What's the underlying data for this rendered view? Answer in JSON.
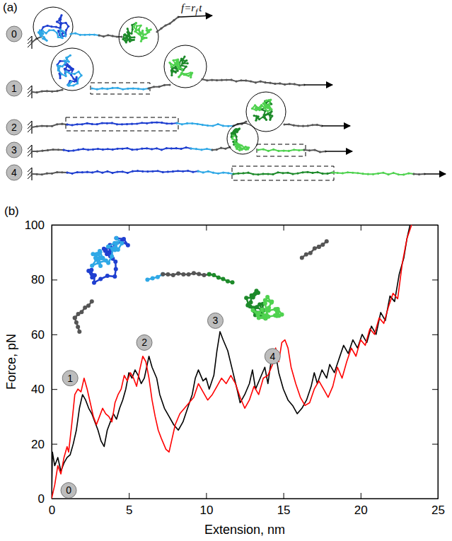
{
  "diagram": {
    "panel_label": "(a)",
    "states": [
      "0",
      "1",
      "2",
      "3",
      "4"
    ],
    "force_label": {
      "text": "f=r",
      "subscript": "f",
      "suffix": "t"
    }
  },
  "chart_data": {
    "type": "line",
    "panel_label": "(b)",
    "x_label": "Extension, nm",
    "y_label": "Force, pN",
    "xlim": [
      0,
      25
    ],
    "ylim": [
      0,
      100
    ],
    "xticks": [
      0,
      5,
      10,
      15,
      20,
      25
    ],
    "yticks": [
      0,
      20,
      40,
      60,
      80,
      100
    ],
    "series": [
      {
        "color": "#000000",
        "x": [
          0,
          0.05,
          0.2,
          0.4,
          0.6,
          0.8,
          1.0,
          1.2,
          1.4,
          1.6,
          1.8,
          2.0,
          2.2,
          2.4,
          2.6,
          2.8,
          3.0,
          3.2,
          3.4,
          3.6,
          3.8,
          4.0,
          4.2,
          4.4,
          4.6,
          4.8,
          5.0,
          5.2,
          5.4,
          5.6,
          5.8,
          6.0,
          6.3,
          6.5,
          6.8,
          7.0,
          7.3,
          7.6,
          7.9,
          8.2,
          8.5,
          8.8,
          9.1,
          9.3,
          9.5,
          9.8,
          10.0,
          10.2,
          10.5,
          10.7,
          10.9,
          11.1,
          11.4,
          11.7,
          12.0,
          12.2,
          12.5,
          12.8,
          13.0,
          13.2,
          13.5,
          13.8,
          14.0,
          14.2,
          14.5,
          14.7,
          15.0,
          15.3,
          15.6,
          15.9,
          16.2,
          16.5,
          16.8,
          17.0,
          17.2,
          17.5,
          17.8,
          18.0,
          18.3,
          18.6,
          18.9,
          19.2,
          19.5,
          19.8,
          20.1,
          20.4,
          20.7,
          21.0,
          21.3,
          21.6,
          21.9,
          22.2,
          22.5,
          22.8,
          23.0,
          23.2
        ],
        "values": [
          0,
          17,
          12,
          15,
          10,
          13,
          15,
          16,
          20,
          25,
          33,
          38,
          36,
          33,
          31,
          28,
          25,
          21,
          19,
          25,
          28,
          31,
          29,
          33,
          36,
          40,
          46,
          44,
          47,
          45,
          42,
          44,
          52,
          48,
          44,
          38,
          33,
          30,
          27,
          25,
          28,
          33,
          38,
          44,
          47,
          43,
          44,
          40,
          45,
          54,
          61,
          58,
          54,
          47,
          40,
          35,
          38,
          42,
          47,
          40,
          44,
          48,
          42,
          50,
          53,
          46,
          40,
          36,
          34,
          31,
          33,
          36,
          41,
          46,
          42,
          47,
          44,
          49,
          46,
          51,
          56,
          53,
          58,
          55,
          60,
          57,
          63,
          60,
          68,
          65,
          74,
          72,
          82,
          88,
          95,
          100
        ]
      },
      {
        "color": "#ff0000",
        "x": [
          0,
          0.2,
          0.4,
          0.6,
          0.8,
          1.0,
          1.1,
          1.3,
          1.5,
          1.7,
          1.9,
          2.1,
          2.3,
          2.5,
          2.7,
          2.9,
          3.1,
          3.3,
          3.5,
          3.7,
          3.9,
          4.1,
          4.3,
          4.5,
          4.7,
          4.9,
          5.1,
          5.3,
          5.5,
          5.7,
          5.9,
          6.1,
          6.3,
          6.5,
          6.7,
          6.9,
          7.1,
          7.4,
          7.6,
          7.8,
          8.0,
          8.3,
          8.6,
          8.9,
          9.2,
          9.5,
          9.8,
          10.1,
          10.4,
          10.7,
          11.0,
          11.3,
          11.6,
          11.9,
          12.2,
          12.5,
          12.8,
          13.1,
          13.4,
          13.7,
          14.0,
          14.3,
          14.5,
          14.7,
          14.9,
          15.1,
          15.3,
          15.5,
          15.8,
          16.1,
          16.4,
          16.7,
          17.0,
          17.3,
          17.6,
          17.9,
          18.2,
          18.5,
          18.8,
          19.1,
          19.4,
          19.7,
          20.0,
          20.3,
          20.6,
          20.9,
          21.2,
          21.5,
          21.8,
          22.1,
          22.4,
          22.7,
          23.0,
          23.3
        ],
        "values": [
          0,
          5,
          12,
          9,
          15,
          19,
          17,
          27,
          38,
          40,
          39,
          44,
          40,
          35,
          30,
          27,
          30,
          33,
          31,
          30,
          28,
          35,
          38,
          40,
          45,
          43,
          46,
          44,
          41,
          47,
          52,
          50,
          44,
          36,
          30,
          25,
          22,
          18,
          17,
          22,
          27,
          31,
          33,
          35,
          37,
          42,
          39,
          36,
          38,
          41,
          44,
          42,
          45,
          42,
          37,
          33,
          36,
          41,
          38,
          44,
          45,
          49,
          55,
          50,
          57,
          58,
          55,
          48,
          42,
          37,
          34,
          35,
          40,
          43,
          40,
          37,
          41,
          48,
          44,
          50,
          55,
          52,
          58,
          56,
          62,
          60,
          66,
          64,
          70,
          75,
          73,
          86,
          95,
          100
        ]
      }
    ],
    "annotations": [
      {
        "text": "0",
        "x": 1.1,
        "y": 3
      },
      {
        "text": "1",
        "x": 1.2,
        "y": 44
      },
      {
        "text": "2",
        "x": 6.0,
        "y": 57
      },
      {
        "text": "3",
        "x": 10.6,
        "y": 65
      },
      {
        "text": "4",
        "x": 14.3,
        "y": 52
      }
    ]
  }
}
